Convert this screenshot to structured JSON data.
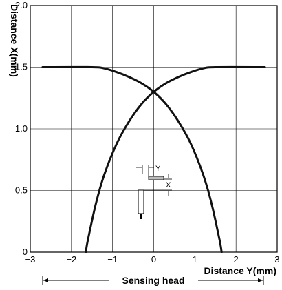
{
  "chart_data": {
    "type": "line",
    "xlabel": "Distance Y(mm)",
    "ylabel": "Distance X(mm)",
    "xlim": [
      -3,
      3
    ],
    "ylim": [
      0,
      2.0
    ],
    "x_ticks": [
      "−3",
      "−2",
      "−1",
      "0",
      "1",
      "2",
      "3"
    ],
    "y_ticks": [
      "0",
      "0.5",
      "1.0",
      "1.5",
      "2.0"
    ],
    "grid": true,
    "bottom_label": "Sensing head",
    "inset_labels": {
      "y": "Y",
      "x": "X"
    },
    "series": [
      {
        "x": [
          -2.7,
          -1.5,
          -1.2,
          -0.9,
          -0.6,
          -0.3,
          0.0,
          0.3,
          0.6,
          0.9,
          1.2,
          1.4,
          1.6,
          1.65
        ],
        "y": [
          1.5,
          1.5,
          1.49,
          1.46,
          1.42,
          1.37,
          1.3,
          1.2,
          1.06,
          0.88,
          0.63,
          0.4,
          0.1,
          0.0
        ]
      },
      {
        "x": [
          -1.65,
          -1.6,
          -1.4,
          -1.2,
          -0.9,
          -0.6,
          -0.3,
          0.0,
          0.3,
          0.6,
          0.9,
          1.2,
          1.5,
          2.7
        ],
        "y": [
          0.0,
          0.1,
          0.4,
          0.63,
          0.88,
          1.06,
          1.2,
          1.3,
          1.37,
          1.42,
          1.46,
          1.49,
          1.5,
          1.5
        ]
      }
    ],
    "colors": {
      "line": "#111111",
      "grid": "#000000"
    }
  }
}
